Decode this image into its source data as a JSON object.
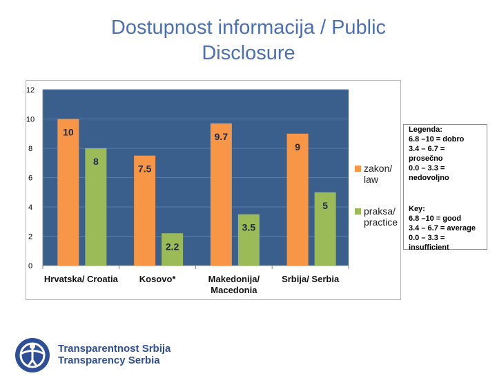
{
  "slide": {
    "title_line1": "Dostupnost informacija / Public",
    "title_line2": "Disclosure"
  },
  "chart_data": {
    "type": "bar",
    "categories": [
      [
        "Hrvatska/ Croatia"
      ],
      [
        "Kosovo*"
      ],
      [
        "Makedonija/",
        "Macedonia"
      ],
      [
        "Srbija/ Serbia"
      ]
    ],
    "series": [
      {
        "name": "zakon/ law",
        "values": [
          10,
          7.5,
          9.7,
          9
        ],
        "value_labels": [
          "10",
          "7.5",
          "9.7",
          "9"
        ],
        "color": "#f79646"
      },
      {
        "name": "praksa/ practice",
        "values": [
          8,
          2.2,
          3.5,
          5
        ],
        "value_labels": [
          "8",
          "2.2",
          "3.5",
          "5"
        ],
        "color": "#9bbb59"
      }
    ],
    "legend_labels": [
      [
        "zakon/",
        "law"
      ],
      [
        "praksa/",
        "practice"
      ]
    ],
    "ylim": [
      0,
      12
    ],
    "yticks": [
      "0",
      "2",
      "4",
      "6",
      "8",
      "10",
      "12"
    ],
    "grid": true,
    "plot_background": "#3a5f8c",
    "legend_placement": "right"
  },
  "legend_note": {
    "sr": "Legenda:\n6.8 –10 = dobro\n3.4 – 6.7 =\nprosečno\n0.0 – 3.3 =\nnedovoljno",
    "en": "Key:\n6.8 –10 = good\n3.4 – 6.7 = average\n0.0 – 3.3 =\ninsufficient"
  },
  "logo": {
    "line1": "Transparentnost Srbija",
    "line2": "Transparency Serbia",
    "color": "#2e4e97"
  }
}
